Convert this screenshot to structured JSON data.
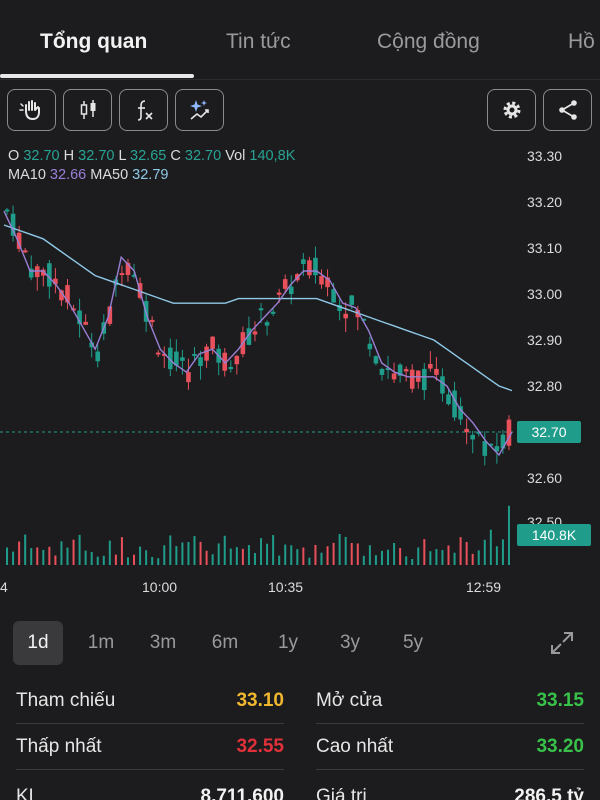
{
  "tabs": [
    {
      "label": "Tổng quan",
      "active": true
    },
    {
      "label": "Tin tức",
      "active": false
    },
    {
      "label": "Cộng đồng",
      "active": false
    },
    {
      "label": "Hồ",
      "active": false
    }
  ],
  "toolbar": {
    "left_icons": [
      "hand-icon",
      "candlestick-icon",
      "function-icon",
      "sparkle-chart-icon"
    ],
    "right_icons": [
      "gear-icon",
      "share-icon"
    ]
  },
  "ohlc": {
    "o_label": "O",
    "o": "32.70",
    "h_label": "H",
    "h": "32.70",
    "l_label": "L",
    "l": "32.65",
    "c_label": "C",
    "c": "32.70",
    "vol_label": "Vol",
    "vol": "140,8K"
  },
  "ma": {
    "ma10_label": "MA10",
    "ma10": "32.66",
    "ma50_label": "MA50",
    "ma50": "32.79"
  },
  "current_price_tag": "32.70",
  "volume_tag": "140.8K",
  "colors": {
    "up": "#1f9c8a",
    "down": "#e8505b",
    "ma10": "#9b7fd6",
    "ma50": "#8fc9e8",
    "reference": "#f0b72f",
    "low": "#e0303a",
    "high": "#38c24a"
  },
  "chart_data": {
    "type": "candlestick",
    "y_ticks": [
      "33.30",
      "33.20",
      "33.10",
      "33.00",
      "32.90",
      "32.80",
      "32.70",
      "32.60",
      "32.50"
    ],
    "x_ticks": [
      "4",
      "10:00",
      "10:35",
      "12:59"
    ],
    "ylim": [
      32.5,
      33.3
    ],
    "series": [
      {
        "values": [
          33.18,
          33.12,
          33.05,
          33.05,
          33.02,
          32.98,
          32.93,
          32.88,
          32.95,
          33.08,
          33.05,
          32.95,
          32.88,
          32.85,
          32.83,
          32.87,
          32.88,
          32.85,
          32.88,
          32.92,
          32.95,
          32.98,
          33.02,
          33.05,
          33.05,
          33.03,
          32.98,
          32.97,
          32.92,
          32.85,
          32.83,
          32.82,
          32.82,
          32.82,
          32.8,
          32.75,
          32.72,
          32.68,
          32.65,
          32.7
        ]
      },
      {
        "values": [
          33.15,
          33.14,
          33.13,
          33.12,
          33.1,
          33.08,
          33.06,
          33.04,
          33.03,
          33.02,
          33.01,
          33.0,
          32.99,
          32.98,
          32.98,
          32.98,
          32.98,
          32.98,
          32.99,
          32.99,
          32.99,
          32.99,
          32.99,
          32.99,
          32.99,
          32.98,
          32.97,
          32.96,
          32.95,
          32.94,
          32.93,
          32.92,
          32.91,
          32.9,
          32.88,
          32.86,
          32.84,
          32.82,
          32.8,
          32.79
        ]
      }
    ]
  },
  "ranges": [
    {
      "label": "1d",
      "active": true
    },
    {
      "label": "1m",
      "active": false
    },
    {
      "label": "3m",
      "active": false
    },
    {
      "label": "6m",
      "active": false
    },
    {
      "label": "1y",
      "active": false
    },
    {
      "label": "3y",
      "active": false
    },
    {
      "label": "5y",
      "active": false
    }
  ],
  "stats": {
    "reference": {
      "label": "Tham chiếu",
      "value": "33.10"
    },
    "open": {
      "label": "Mở cửa",
      "value": "33.15"
    },
    "low": {
      "label": "Thấp nhất",
      "value": "32.55"
    },
    "high": {
      "label": "Cao nhất",
      "value": "33.20"
    },
    "volume": {
      "label": "KL",
      "value": "8.711.600"
    },
    "value": {
      "label": "Giá trị",
      "value": "286,5 tỷ"
    }
  }
}
